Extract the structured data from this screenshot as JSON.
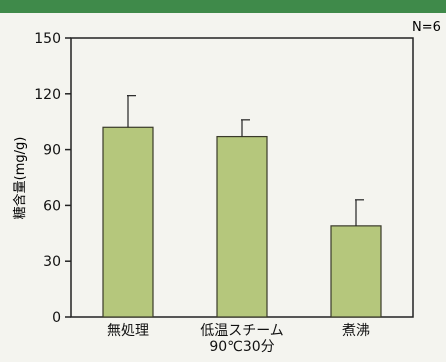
{
  "chart_data": {
    "type": "bar",
    "annotation": "N=6",
    "ylabel": "糖含量(mg/g)",
    "categories": [
      "無処理",
      "低温スチーム\n90℃30分",
      "煮沸"
    ],
    "values": [
      102,
      97,
      49
    ],
    "errors": [
      17,
      9,
      14
    ],
    "ylim": [
      0,
      150
    ],
    "yticks": [
      0,
      30,
      60,
      90,
      120,
      150
    ],
    "grid": false
  },
  "colors": {
    "header": "#3f8a4a",
    "bar_fill": "#b5c77c",
    "bar_stroke": "#3a3a2a",
    "axis": "#222222"
  }
}
